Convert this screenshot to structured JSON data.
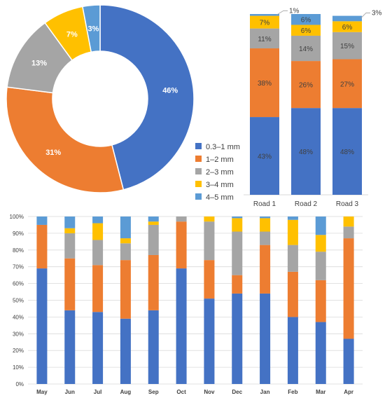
{
  "colors": {
    "blue": "#4472C4",
    "orange": "#ED7D31",
    "gray": "#A5A5A5",
    "yellow": "#FFC000",
    "lightblue": "#5B9BD5"
  },
  "chart_data": [
    {
      "type": "pie",
      "variant": "donut",
      "legend_position": "right",
      "labels": [
        "0.3–1 mm",
        "1–2 mm",
        "2–3 mm",
        "3–4 mm",
        "4–5 mm"
      ],
      "values": [
        46,
        31,
        13,
        7,
        3
      ],
      "value_labels": [
        "46%",
        "31%",
        "13%",
        "7%",
        "3%"
      ],
      "colors": [
        "#4472C4",
        "#ED7D31",
        "#A5A5A5",
        "#FFC000",
        "#5B9BD5"
      ]
    },
    {
      "type": "bar",
      "stacked": true,
      "categories": [
        "Road 1",
        "Road 2",
        "Road 3"
      ],
      "series": [
        {
          "values": [
            43,
            48,
            48
          ],
          "labels": [
            "43%",
            "48%",
            "48%"
          ]
        },
        {
          "values": [
            38,
            26,
            27
          ],
          "labels": [
            "38%",
            "26%",
            "27%"
          ]
        },
        {
          "values": [
            11,
            14,
            15
          ],
          "labels": [
            "11%",
            "14%",
            "15%"
          ]
        },
        {
          "values": [
            7,
            6,
            6
          ],
          "labels": [
            "7%",
            "6%",
            "6%"
          ]
        },
        {
          "values": [
            1,
            6,
            3
          ],
          "labels": [
            "1%",
            "6%",
            "3%"
          ]
        }
      ],
      "ylim": [
        0,
        100
      ]
    },
    {
      "type": "bar",
      "stacked": true,
      "categories": [
        "May",
        "Jun",
        "Jul",
        "Aug",
        "Sep",
        "Oct",
        "Nov",
        "Dec",
        "Jan",
        "Feb",
        "Mar",
        "Apr"
      ],
      "series": [
        {
          "values": [
            69,
            44,
            43,
            39,
            44,
            69,
            51,
            54,
            54,
            40,
            37,
            27
          ]
        },
        {
          "values": [
            26,
            31,
            28,
            35,
            33,
            28,
            23,
            11,
            29,
            27,
            25,
            60
          ]
        },
        {
          "values": [
            0,
            15,
            15,
            10,
            18,
            3,
            23,
            26,
            8,
            16,
            17,
            7
          ]
        },
        {
          "values": [
            0,
            3,
            10,
            3,
            2,
            0,
            3,
            8,
            8,
            15,
            10,
            6
          ]
        },
        {
          "values": [
            5,
            7,
            4,
            13,
            3,
            0,
            0,
            1,
            1,
            2,
            11,
            0
          ]
        }
      ],
      "ylim": [
        0,
        100
      ],
      "yticks": [
        "0%",
        "10%",
        "20%",
        "30%",
        "40%",
        "50%",
        "60%",
        "70%",
        "80%",
        "90%",
        "100%"
      ],
      "grid": true
    }
  ]
}
